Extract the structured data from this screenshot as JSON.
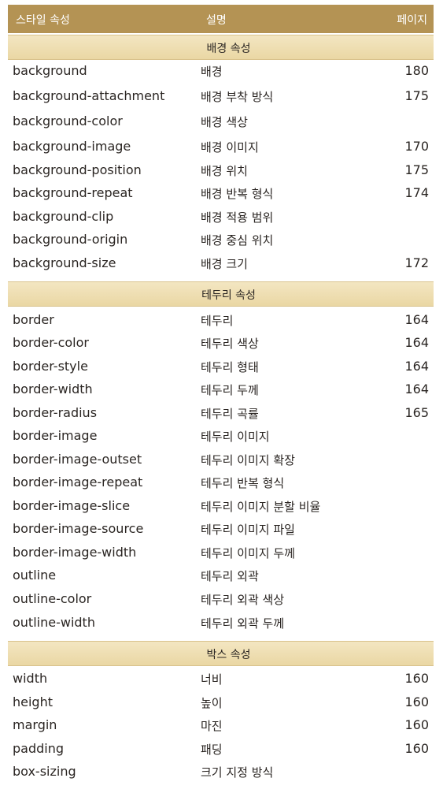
{
  "header": {
    "col_property": "스타일 속성",
    "col_description": "설명",
    "col_page": "페이지"
  },
  "sections": [
    {
      "title": "배경 속성",
      "rows": [
        {
          "property": "background",
          "description": "배경",
          "page": "180"
        },
        {
          "property": "background-attachment",
          "description": "배경 부착 방식",
          "page": "175"
        },
        {
          "property": "background-color",
          "description": "배경 색상",
          "page": ""
        },
        {
          "property": "background-image",
          "description": "배경 이미지",
          "page": "170"
        },
        {
          "property": "background-position",
          "description": "배경 위치",
          "page": "175"
        },
        {
          "property": "background-repeat",
          "description": "배경 반복 형식",
          "page": "174"
        },
        {
          "property": "background-clip",
          "description": "배경 적용 범위",
          "page": ""
        },
        {
          "property": "background-origin",
          "description": "배경 중심 위치",
          "page": ""
        },
        {
          "property": "background-size",
          "description": "배경 크기",
          "page": "172"
        }
      ]
    },
    {
      "title": "테두리 속성",
      "rows": [
        {
          "property": "border",
          "description": "테두리",
          "page": "164"
        },
        {
          "property": "border-color",
          "description": "테두리 색상",
          "page": "164"
        },
        {
          "property": "border-style",
          "description": "테두리 형태",
          "page": "164"
        },
        {
          "property": "border-width",
          "description": "테두리 두께",
          "page": "164"
        },
        {
          "property": "border-radius",
          "description": "테두리 곡률",
          "page": "165"
        },
        {
          "property": "border-image",
          "description": "테두리 이미지",
          "page": ""
        },
        {
          "property": "border-image-outset",
          "description": "테두리 이미지 확장",
          "page": ""
        },
        {
          "property": "border-image-repeat",
          "description": "테두리 반복 형식",
          "page": ""
        },
        {
          "property": "border-image-slice",
          "description": "테두리 이미지 분할 비율",
          "page": ""
        },
        {
          "property": "border-image-source",
          "description": "테두리 이미지 파일",
          "page": ""
        },
        {
          "property": "border-image-width",
          "description": "테두리 이미지 두께",
          "page": ""
        },
        {
          "property": "outline",
          "description": "테두리 외곽",
          "page": ""
        },
        {
          "property": "outline-color",
          "description": "테두리 외곽 색상",
          "page": ""
        },
        {
          "property": "outline-width",
          "description": "테두리 외곽 두께",
          "page": ""
        }
      ]
    },
    {
      "title": "박스 속성",
      "rows": [
        {
          "property": "width",
          "description": "너비",
          "page": "160"
        },
        {
          "property": "height",
          "description": "높이",
          "page": "160"
        },
        {
          "property": "margin",
          "description": "마진",
          "page": "160"
        },
        {
          "property": "padding",
          "description": "패딩",
          "page": "160"
        },
        {
          "property": "box-sizing",
          "description": "크기 지정 방식",
          "page": ""
        }
      ]
    }
  ]
}
